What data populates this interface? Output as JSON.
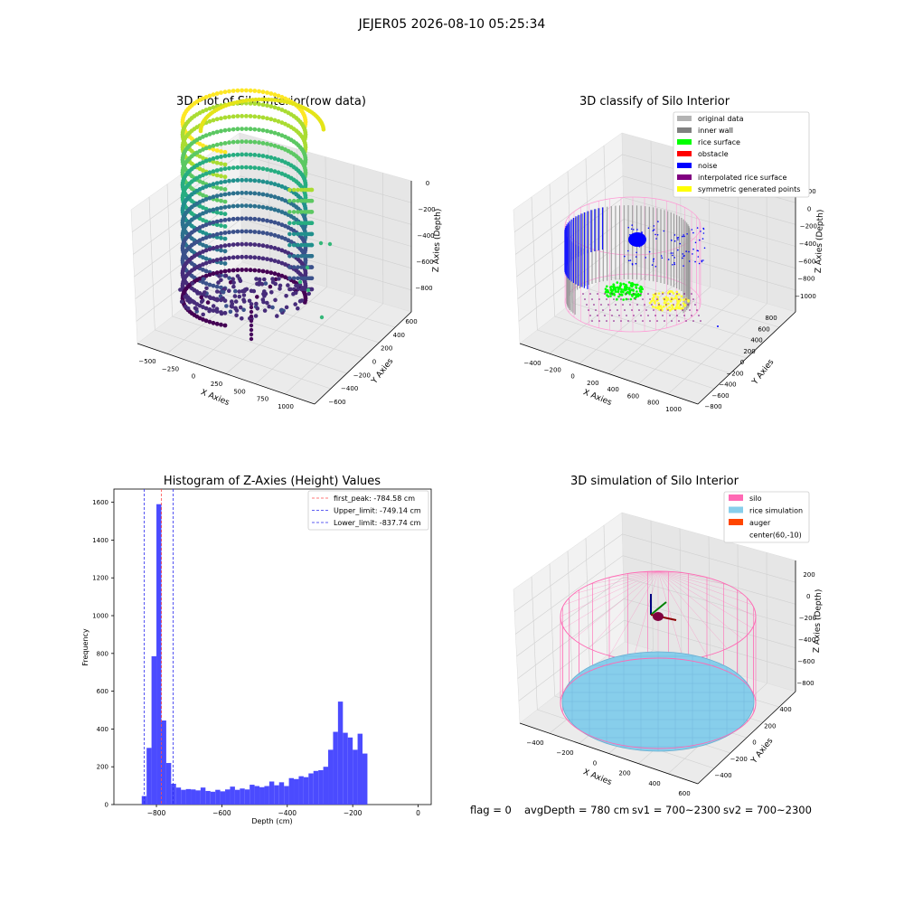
{
  "suptitle": "JEJER05 2026-08-10 05:25:34",
  "colors": {
    "histogram": "#4b4bff",
    "first_peak_line": "#ff4d4d",
    "limit_line": "#2a2aee",
    "silo": "#ff69b4",
    "rice": "#87ceeb",
    "auger": "#ff4500"
  },
  "chart_data": [
    {
      "type": "scatter",
      "projection": "3d",
      "title": "3D Plot of Silo Interior(row data)",
      "xlabel": "X Axies",
      "ylabel": "Y Axies",
      "zlabel": "Z Axies (Depth)",
      "xticks": [
        "−500",
        "−250",
        "0",
        "250",
        "500",
        "750",
        "1000"
      ],
      "yticks": [
        "600",
        "400",
        "200",
        "0",
        "−200",
        "−400",
        "−600"
      ],
      "zticks": [
        "0",
        "−200",
        "−400",
        "−600",
        "−800"
      ],
      "colormap": "viridis"
    },
    {
      "type": "scatter",
      "projection": "3d",
      "title": "3D classify of Silo Interior",
      "xlabel": "X Axies",
      "ylabel": "Y Axies",
      "zlabel": "Z Axies (Depth)",
      "xticks": [
        "−400",
        "−200",
        "0",
        "200",
        "400",
        "600",
        "800",
        "1000"
      ],
      "yticks": [
        "800",
        "600",
        "400",
        "200",
        "0",
        "−200",
        "−400",
        "−600",
        "−800"
      ],
      "zticks": [
        "200",
        "0",
        "−200",
        "−400",
        "−600",
        "−800",
        "−1000"
      ],
      "legend": [
        {
          "label": "original data",
          "color": "#b3b3b3"
        },
        {
          "label": "inner wall",
          "color": "#808080"
        },
        {
          "label": "rice surface",
          "color": "#00ff00"
        },
        {
          "label": "obstacle",
          "color": "#ff0000"
        },
        {
          "label": "noise",
          "color": "#0000ff"
        },
        {
          "label": "interpolated rice surface",
          "color": "#800080"
        },
        {
          "label": "symmetric generated points",
          "color": "#ffff00"
        }
      ],
      "legend_position": "top-right"
    },
    {
      "type": "bar",
      "title": "Histogram of Z-Axies (Height) Values",
      "xlabel": "Depth (cm)",
      "ylabel": "Frequency",
      "xlim": [
        -930,
        40
      ],
      "ylim": [
        0,
        1670
      ],
      "xticks": [
        -800,
        -600,
        -400,
        -200,
        0
      ],
      "yticks": [
        0,
        200,
        400,
        600,
        800,
        1000,
        1200,
        1400,
        1600
      ],
      "bin_width": 15,
      "bin_start": -845,
      "values": [
        45,
        300,
        785,
        1590,
        445,
        220,
        110,
        90,
        78,
        82,
        80,
        75,
        90,
        72,
        68,
        78,
        70,
        80,
        95,
        78,
        85,
        80,
        105,
        98,
        92,
        98,
        122,
        102,
        118,
        98,
        140,
        135,
        150,
        145,
        165,
        178,
        182,
        200,
        290,
        385,
        545,
        380,
        355,
        290,
        375,
        270
      ],
      "vlines": [
        {
          "label": "first_peak: -784.58 cm",
          "x": -784.58,
          "color": "red"
        },
        {
          "label": "Upper_limit: -749.14 cm",
          "x": -749.14,
          "color": "blue"
        },
        {
          "label": "Lower_limit: -837.74 cm",
          "x": -837.74,
          "color": "blue"
        }
      ],
      "legend_position": "top-right"
    },
    {
      "type": "surface",
      "projection": "3d",
      "title": "3D simulation of Silo Interior",
      "xlabel": "X Axies",
      "ylabel": "Y Axies",
      "zlabel": "Z Axies (Depth)",
      "xticks": [
        "−400",
        "−200",
        "0",
        "200",
        "400",
        "600"
      ],
      "yticks": [
        "400",
        "200",
        "0",
        "−200",
        "−400"
      ],
      "zticks": [
        "200",
        "0",
        "−200",
        "−400",
        "−600",
        "−800"
      ],
      "legend": [
        {
          "label": "silo",
          "color": "#ff69b4"
        },
        {
          "label": "rice simulation",
          "color": "#87ceeb"
        },
        {
          "label": "auger",
          "color": "#ff4500"
        },
        {
          "label": "center(60,-10)",
          "color": ""
        }
      ],
      "legend_position": "top-right"
    }
  ],
  "footer": {
    "flag": "flag = 0",
    "avg": "avgDepth = 780 cm",
    "sv1": "sv1 = 700~2300",
    "sv2": "sv2 = 700~2300"
  }
}
